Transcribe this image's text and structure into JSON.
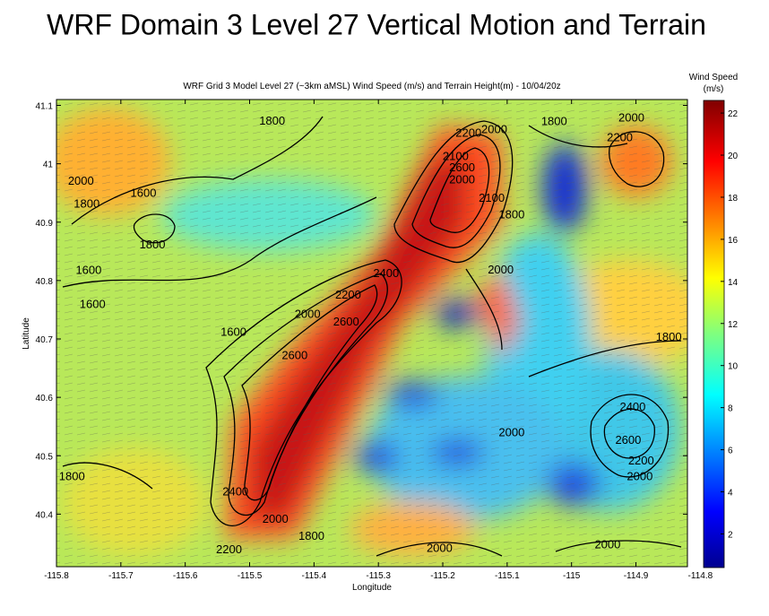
{
  "chart_data": {
    "type": "heatmap",
    "title": "WRF Domain 3 Level 27 Vertical Motion and Terrain",
    "subtitle": "WRF Grid 3 Model Level 27 (~3km aMSL) Wind Speed (m/s) and Terrain Height(m) - 10/04/20z",
    "x_label": "Longitude",
    "y_label": "Latitude",
    "xlim": [
      -115.8,
      -114.82
    ],
    "xticks": [
      -115.8,
      -115.7,
      -115.6,
      -115.5,
      -115.4,
      -115.3,
      -115.2,
      -115.1,
      -115,
      -114.9,
      -114.8
    ],
    "ylim": [
      40.31,
      41.11
    ],
    "yticks": [
      40.4,
      40.5,
      40.6,
      40.7,
      40.8,
      40.9,
      41,
      41.1
    ],
    "colorbar_label": [
      "Wind Speed",
      "(m/s)"
    ],
    "clim": [
      0.4,
      22.6
    ],
    "cticks": [
      2,
      4,
      6,
      8,
      10,
      12,
      14,
      16,
      18,
      20,
      22
    ],
    "contour_labels": [
      {
        "label": "1800",
        "lon": -115.465,
        "lat": 41.075
      },
      {
        "label": "2200",
        "lon": -115.16,
        "lat": 41.054
      },
      {
        "label": "2000",
        "lon": -115.12,
        "lat": 41.06
      },
      {
        "label": "1800",
        "lon": -115.027,
        "lat": 41.074
      },
      {
        "label": "2000",
        "lon": -114.907,
        "lat": 41.08
      },
      {
        "label": "2200",
        "lon": -114.925,
        "lat": 41.046
      },
      {
        "label": "2100",
        "lon": -115.18,
        "lat": 41.014
      },
      {
        "label": "2600",
        "lon": -115.17,
        "lat": 40.995
      },
      {
        "label": "2000",
        "lon": -115.17,
        "lat": 40.974
      },
      {
        "label": "2000",
        "lon": -115.762,
        "lat": 40.972
      },
      {
        "label": "1600",
        "lon": -115.665,
        "lat": 40.951
      },
      {
        "label": "1800",
        "lon": -115.753,
        "lat": 40.933
      },
      {
        "label": "2100",
        "lon": -115.124,
        "lat": 40.943
      },
      {
        "label": "1800",
        "lon": -115.093,
        "lat": 40.914
      },
      {
        "label": "1800",
        "lon": -115.651,
        "lat": 40.863
      },
      {
        "label": "2000",
        "lon": -115.11,
        "lat": 40.82
      },
      {
        "label": "1600",
        "lon": -115.75,
        "lat": 40.819
      },
      {
        "label": "2400",
        "lon": -115.288,
        "lat": 40.814
      },
      {
        "label": "1600",
        "lon": -115.744,
        "lat": 40.761
      },
      {
        "label": "2200",
        "lon": -115.347,
        "lat": 40.777
      },
      {
        "label": "2000",
        "lon": -115.41,
        "lat": 40.744
      },
      {
        "label": "2600",
        "lon": -115.35,
        "lat": 40.731
      },
      {
        "label": "1600",
        "lon": -115.525,
        "lat": 40.713
      },
      {
        "label": "1800",
        "lon": -114.849,
        "lat": 40.705
      },
      {
        "label": "2600",
        "lon": -115.43,
        "lat": 40.673
      },
      {
        "label": "2400",
        "lon": -114.905,
        "lat": 40.585
      },
      {
        "label": "2000",
        "lon": -115.093,
        "lat": 40.541
      },
      {
        "label": "2600",
        "lon": -114.912,
        "lat": 40.528
      },
      {
        "label": "2200",
        "lon": -114.892,
        "lat": 40.493
      },
      {
        "label": "2000",
        "lon": -114.894,
        "lat": 40.466
      },
      {
        "label": "1800",
        "lon": -115.776,
        "lat": 40.466
      },
      {
        "label": "2400",
        "lon": -115.522,
        "lat": 40.44
      },
      {
        "label": "2000",
        "lon": -115.46,
        "lat": 40.393
      },
      {
        "label": "1800",
        "lon": -115.404,
        "lat": 40.364
      },
      {
        "label": "2200",
        "lon": -115.532,
        "lat": 40.341
      },
      {
        "label": "2000",
        "lon": -115.205,
        "lat": 40.343
      },
      {
        "label": "2000",
        "lon": -114.944,
        "lat": 40.349
      }
    ]
  }
}
